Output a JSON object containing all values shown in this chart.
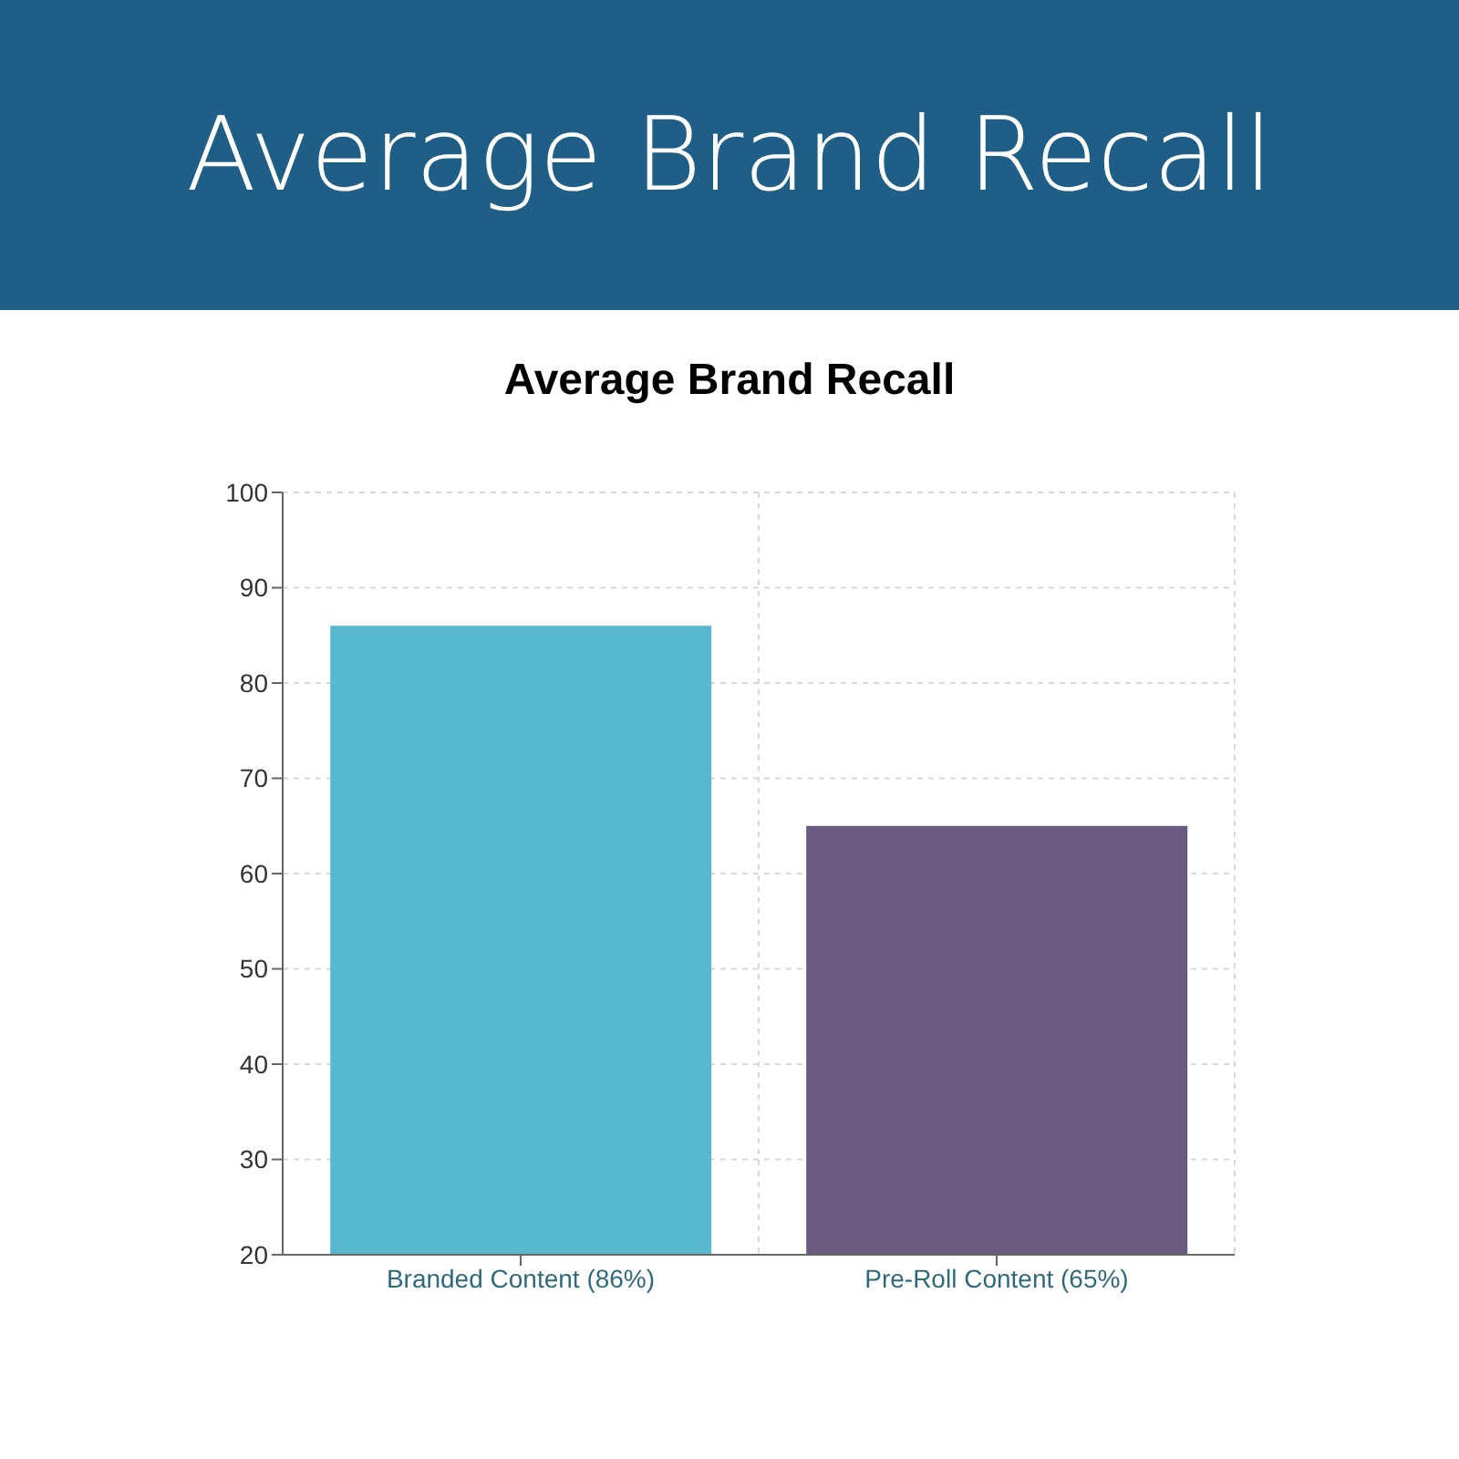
{
  "chart_data": {
    "type": "bar",
    "title": "Average Brand Recall",
    "subtitle": "Average Brand Recall",
    "categories": [
      "Branded Content (86%)",
      "Pre-Roll Content (65%)"
    ],
    "values": [
      86,
      65
    ],
    "colors": [
      "#56b9d0",
      "#6b5a7e"
    ],
    "ylim": [
      20,
      100
    ],
    "yticks": [
      20,
      30,
      40,
      50,
      60,
      70,
      80,
      90,
      100
    ],
    "grid": true
  }
}
